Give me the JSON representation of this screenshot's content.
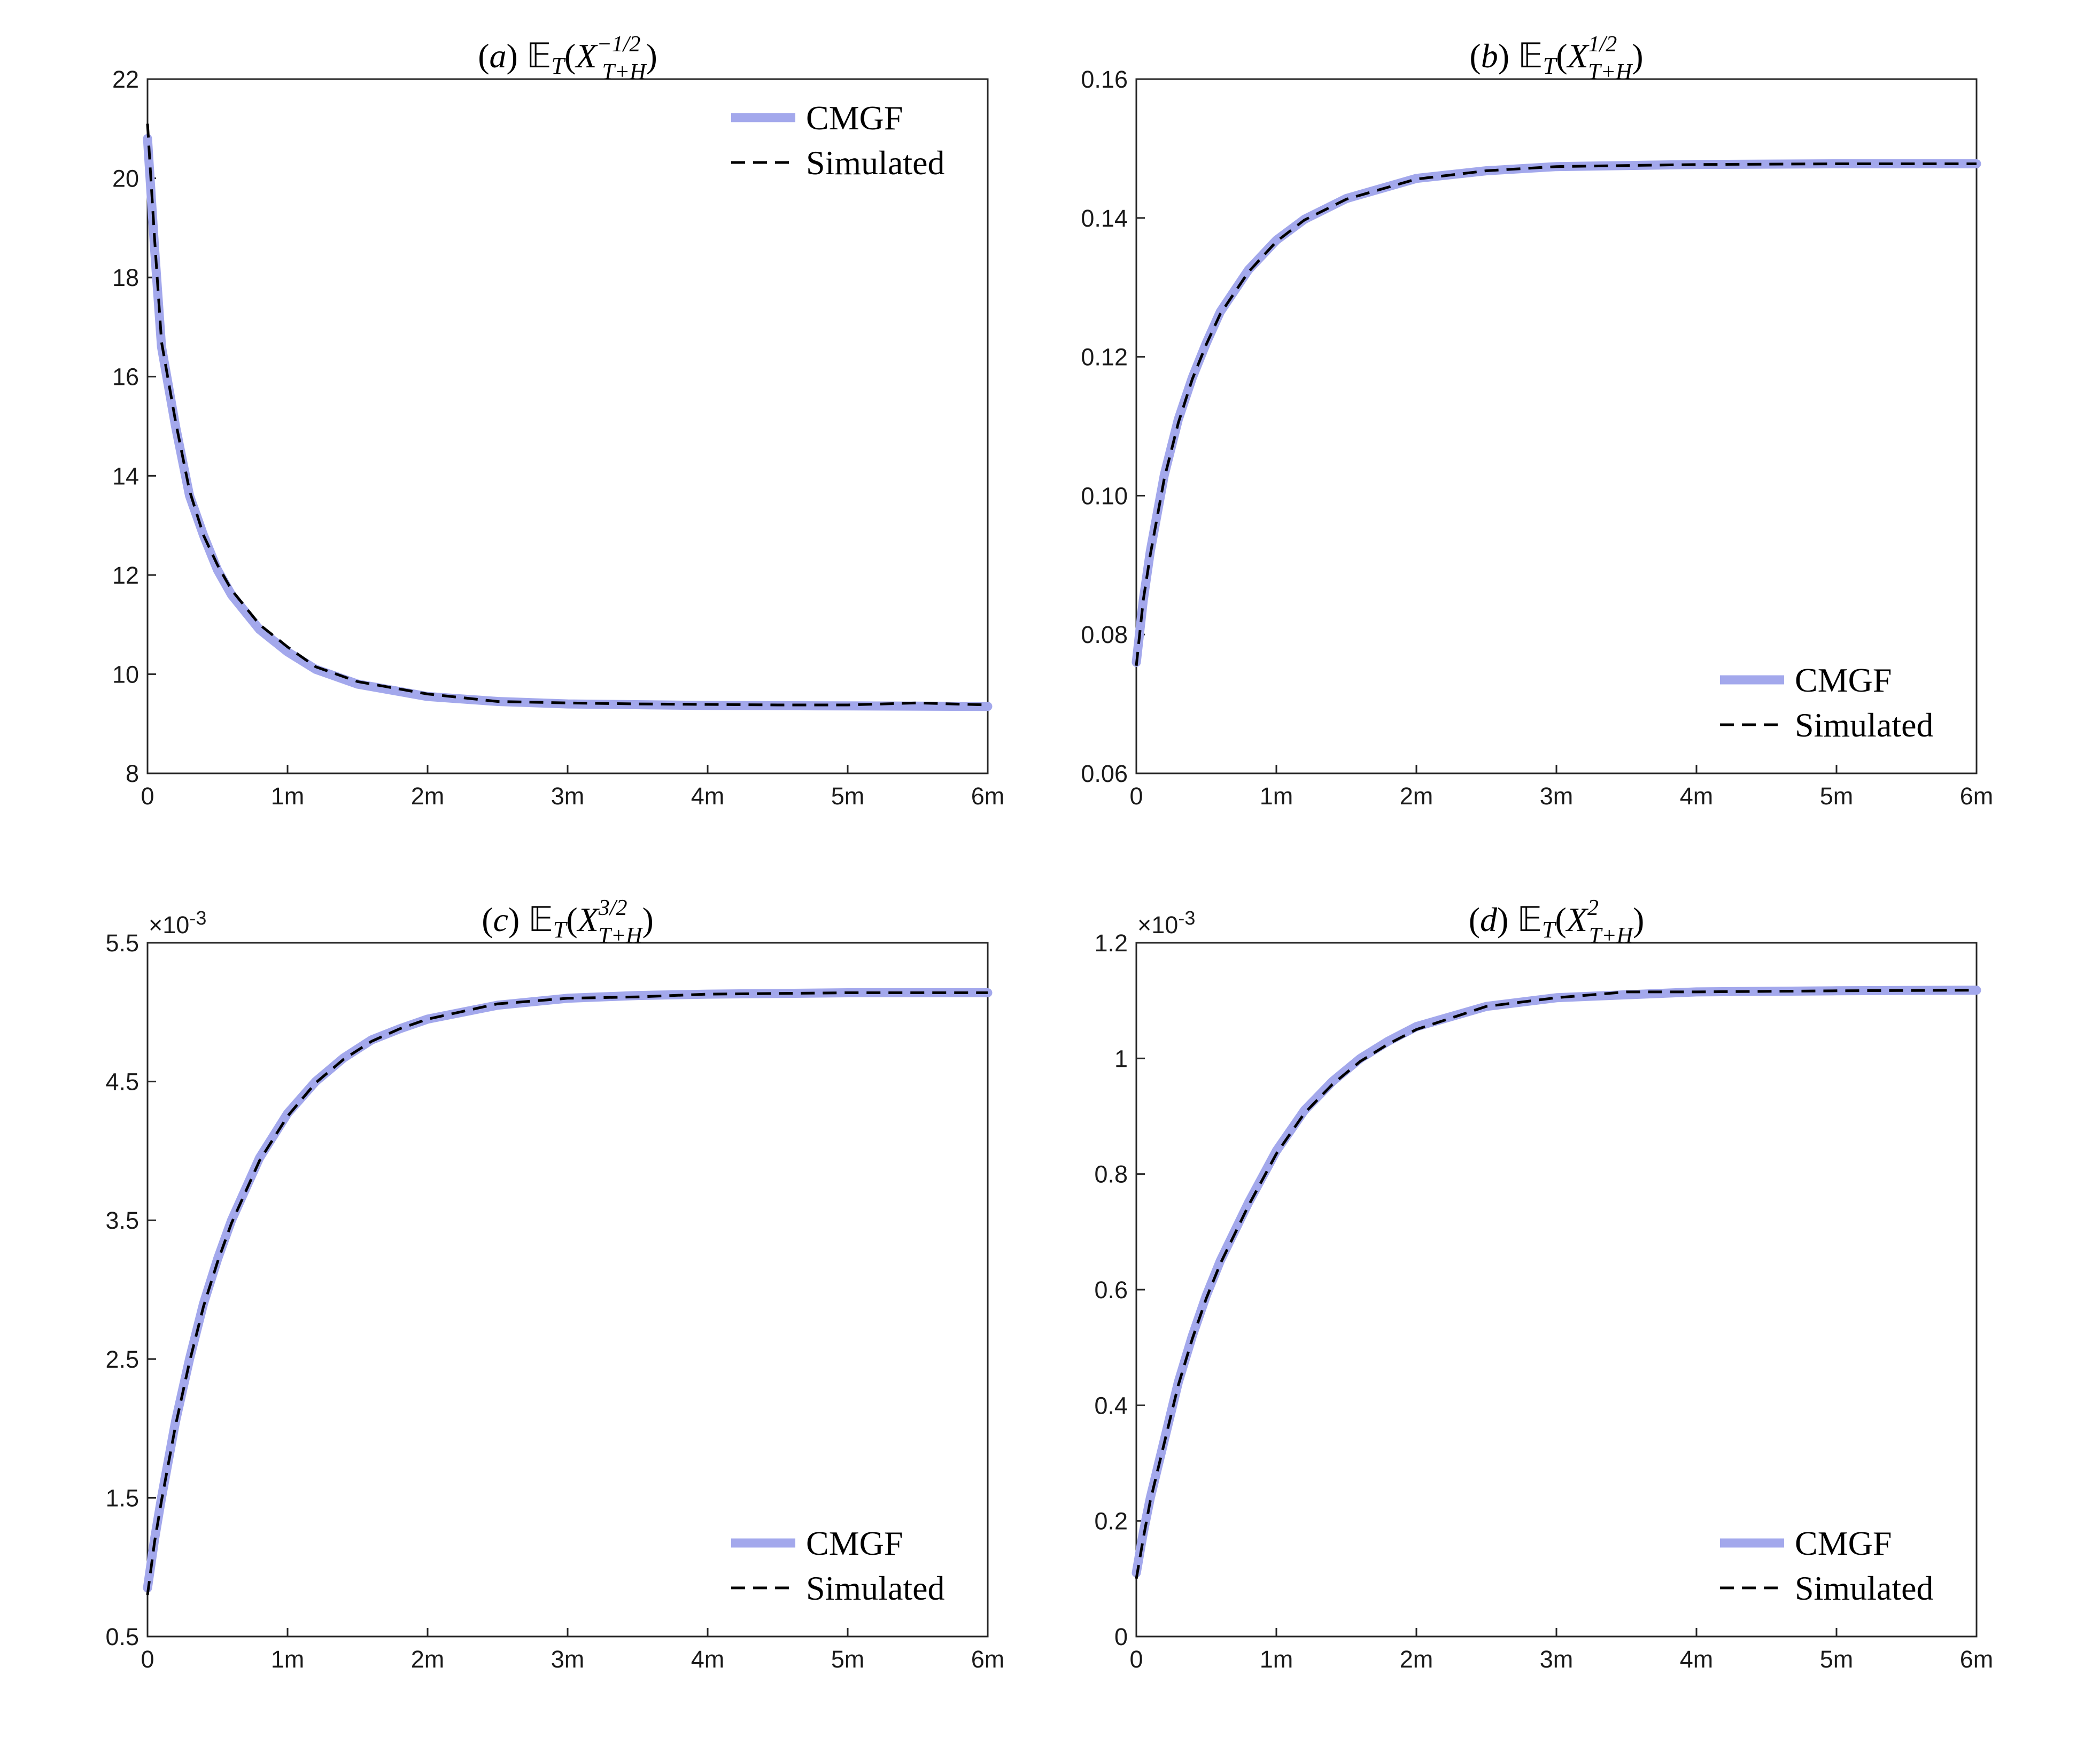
{
  "colors": {
    "cmgf": "#a3a8ec",
    "simulated": "#000000",
    "axis": "#262626"
  },
  "legend_labels": {
    "cmgf": "CMGF",
    "simulated": "Simulated"
  },
  "chart_data": [
    {
      "type": "line",
      "panel": "(a)",
      "title_tex": "(a) E_T(X_{T+H}^{-1/2})",
      "title_exponent": "−1/2",
      "x_tick_labels": [
        "0",
        "1m",
        "2m",
        "3m",
        "4m",
        "5m",
        "6m"
      ],
      "xlim": [
        0,
        6
      ],
      "ylim": [
        8,
        22
      ],
      "y_ticks": [
        8,
        10,
        12,
        14,
        16,
        18,
        20,
        22
      ],
      "y_tick_labels": [
        "8",
        "10",
        "12",
        "14",
        "16",
        "18",
        "20",
        "22"
      ],
      "y_exponent_label": "",
      "legend_position": "top-right",
      "series": [
        {
          "name": "CMGF",
          "style": "solid",
          "x": [
            0,
            0.05,
            0.1,
            0.2,
            0.3,
            0.4,
            0.5,
            0.6,
            0.8,
            1.0,
            1.2,
            1.5,
            2.0,
            2.5,
            3.0,
            4.0,
            5.0,
            6.0
          ],
          "y": [
            20.8,
            18.6,
            16.6,
            15.0,
            13.6,
            12.8,
            12.1,
            11.6,
            10.9,
            10.45,
            10.1,
            9.8,
            9.55,
            9.45,
            9.4,
            9.37,
            9.36,
            9.35
          ]
        },
        {
          "name": "Simulated",
          "style": "dashed",
          "x": [
            0,
            0.05,
            0.1,
            0.2,
            0.3,
            0.4,
            0.5,
            0.6,
            0.8,
            1.0,
            1.2,
            1.5,
            1.7,
            2.0,
            2.5,
            3.0,
            3.5,
            4.0,
            4.5,
            5.0,
            5.5,
            6.0
          ],
          "y": [
            21.1,
            18.8,
            16.7,
            15.1,
            13.7,
            12.8,
            12.2,
            11.7,
            11.0,
            10.55,
            10.15,
            9.85,
            9.75,
            9.6,
            9.45,
            9.42,
            9.4,
            9.39,
            9.38,
            9.38,
            9.42,
            9.38
          ]
        }
      ]
    },
    {
      "type": "line",
      "panel": "(b)",
      "title_tex": "(b) E_T(X_{T+H}^{1/2})",
      "title_exponent": "1/2",
      "x_tick_labels": [
        "0",
        "1m",
        "2m",
        "3m",
        "4m",
        "5m",
        "6m"
      ],
      "xlim": [
        0,
        6
      ],
      "ylim": [
        0.06,
        0.16
      ],
      "y_ticks": [
        0.06,
        0.08,
        0.1,
        0.12,
        0.14,
        0.16
      ],
      "y_tick_labels": [
        "0.06",
        "0.08",
        "0.10",
        "0.12",
        "0.14",
        "0.16"
      ],
      "y_exponent_label": "",
      "legend_position": "bottom-right",
      "series": [
        {
          "name": "CMGF",
          "style": "solid",
          "x": [
            0,
            0.05,
            0.1,
            0.2,
            0.3,
            0.4,
            0.5,
            0.6,
            0.8,
            1.0,
            1.2,
            1.5,
            2.0,
            2.5,
            3.0,
            4.0,
            5.0,
            6.0
          ],
          "y": [
            0.076,
            0.085,
            0.092,
            0.103,
            0.111,
            0.117,
            0.122,
            0.1265,
            0.1325,
            0.1368,
            0.1398,
            0.1428,
            0.1457,
            0.1468,
            0.1474,
            0.1477,
            0.1478,
            0.1478
          ]
        },
        {
          "name": "Simulated",
          "style": "dashed",
          "x": [
            0,
            0.05,
            0.1,
            0.2,
            0.3,
            0.4,
            0.5,
            0.6,
            0.8,
            1.0,
            1.2,
            1.5,
            2.0,
            2.5,
            3.0,
            4.0,
            5.0,
            6.0
          ],
          "y": [
            0.0755,
            0.085,
            0.0915,
            0.1025,
            0.1105,
            0.1168,
            0.1218,
            0.1262,
            0.1322,
            0.1366,
            0.1397,
            0.1427,
            0.1456,
            0.1468,
            0.1474,
            0.1477,
            0.1478,
            0.1478
          ]
        }
      ]
    },
    {
      "type": "line",
      "panel": "(c)",
      "title_tex": "(c) E_T(X_{T+H}^{3/2})",
      "title_exponent": "3/2",
      "x_tick_labels": [
        "0",
        "1m",
        "2m",
        "3m",
        "4m",
        "5m",
        "6m"
      ],
      "xlim": [
        0,
        6
      ],
      "ylim": [
        0.5,
        5.5
      ],
      "y_ticks": [
        0.5,
        1.5,
        2.5,
        3.5,
        4.5,
        5.5
      ],
      "y_tick_labels": [
        "0.5",
        "1.5",
        "2.5",
        "3.5",
        "4.5",
        "5.5"
      ],
      "y_exponent_label": "×10",
      "y_exponent_power": "-3",
      "legend_position": "bottom-right",
      "series": [
        {
          "name": "CMGF",
          "style": "solid",
          "x": [
            0,
            0.05,
            0.1,
            0.2,
            0.3,
            0.4,
            0.5,
            0.6,
            0.8,
            1.0,
            1.2,
            1.4,
            1.6,
            1.8,
            2.0,
            2.5,
            3.0,
            3.5,
            4.0,
            5.0,
            6.0
          ],
          "y": [
            0.85,
            1.2,
            1.5,
            2.05,
            2.5,
            2.9,
            3.22,
            3.5,
            3.95,
            4.27,
            4.5,
            4.67,
            4.8,
            4.88,
            4.95,
            5.05,
            5.1,
            5.12,
            5.13,
            5.14,
            5.14
          ]
        },
        {
          "name": "Simulated",
          "style": "dashed",
          "x": [
            0,
            0.05,
            0.1,
            0.2,
            0.3,
            0.4,
            0.5,
            0.6,
            0.8,
            1.0,
            1.2,
            1.4,
            1.6,
            1.8,
            2.0,
            2.5,
            3.0,
            3.5,
            4.0,
            5.0,
            6.0
          ],
          "y": [
            0.8,
            1.18,
            1.48,
            2.02,
            2.48,
            2.88,
            3.2,
            3.48,
            3.93,
            4.25,
            4.49,
            4.66,
            4.79,
            4.88,
            4.95,
            5.06,
            5.1,
            5.11,
            5.13,
            5.14,
            5.14
          ]
        }
      ]
    },
    {
      "type": "line",
      "panel": "(d)",
      "title_tex": "(d) E_T(X_{T+H}^{2})",
      "title_exponent": "2",
      "x_tick_labels": [
        "0",
        "1m",
        "2m",
        "3m",
        "4m",
        "5m",
        "6m"
      ],
      "xlim": [
        0,
        6
      ],
      "ylim": [
        0,
        1.2
      ],
      "y_ticks": [
        0,
        0.2,
        0.4,
        0.6,
        0.8,
        1.0,
        1.2
      ],
      "y_tick_labels": [
        "0",
        "0.2",
        "0.4",
        "0.6",
        "0.8",
        "1",
        "1.2"
      ],
      "y_exponent_label": "×10",
      "y_exponent_power": "-3",
      "legend_position": "bottom-right",
      "series": [
        {
          "name": "CMGF",
          "style": "solid",
          "x": [
            0,
            0.05,
            0.1,
            0.2,
            0.3,
            0.4,
            0.5,
            0.6,
            0.8,
            1.0,
            1.2,
            1.4,
            1.6,
            1.8,
            2.0,
            2.5,
            3.0,
            3.5,
            4.0,
            5.0,
            6.0
          ],
          "y": [
            0.11,
            0.18,
            0.24,
            0.34,
            0.44,
            0.52,
            0.59,
            0.65,
            0.75,
            0.84,
            0.91,
            0.96,
            1.0,
            1.03,
            1.055,
            1.09,
            1.105,
            1.11,
            1.115,
            1.117,
            1.118
          ]
        },
        {
          "name": "Simulated",
          "style": "dashed",
          "x": [
            0,
            0.05,
            0.1,
            0.2,
            0.3,
            0.4,
            0.5,
            0.6,
            0.8,
            1.0,
            1.2,
            1.4,
            1.6,
            1.8,
            2.0,
            2.5,
            3.0,
            3.5,
            4.0,
            5.0,
            6.0
          ],
          "y": [
            0.1,
            0.17,
            0.235,
            0.335,
            0.435,
            0.515,
            0.585,
            0.645,
            0.745,
            0.835,
            0.905,
            0.955,
            0.995,
            1.025,
            1.05,
            1.09,
            1.105,
            1.115,
            1.115,
            1.117,
            1.118
          ]
        }
      ]
    }
  ]
}
